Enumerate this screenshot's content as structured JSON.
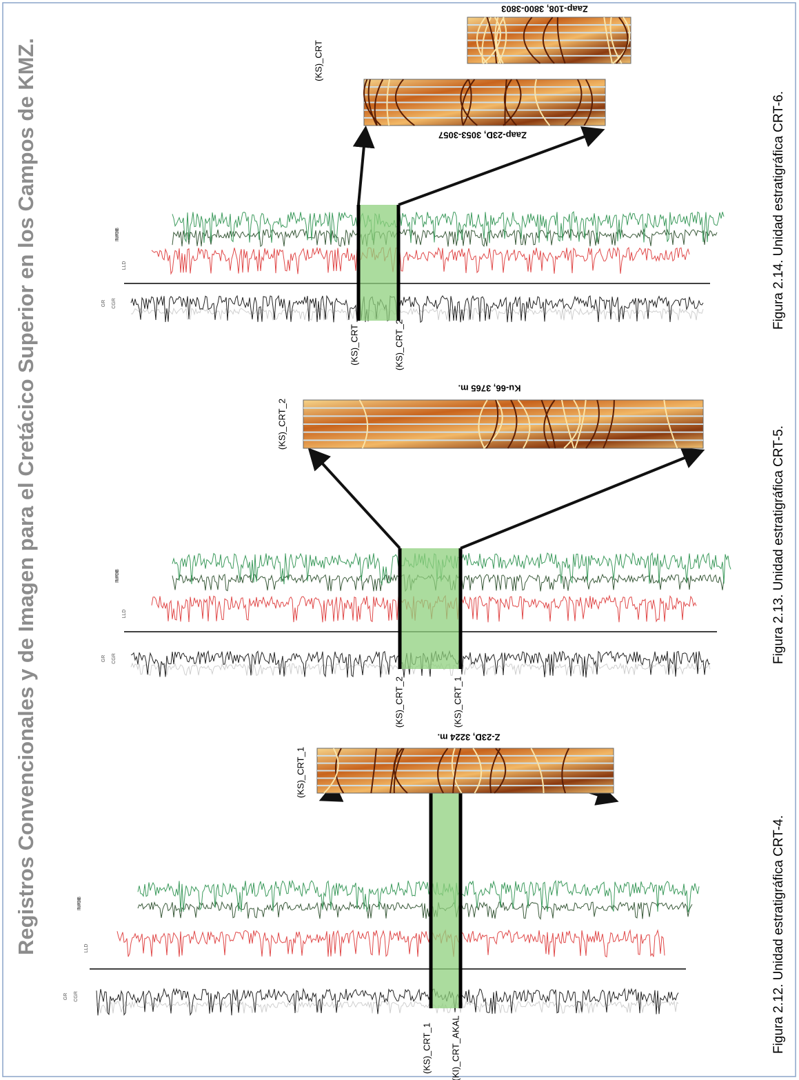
{
  "title": "Registros Convencionales y de Imagen para el Cretácico Superior en los Campos de KMZ.",
  "figures": [
    {
      "caption": "Figura 2.12. Unidad estratigráfica CRT-4.",
      "tracks": [
        "GR",
        "CGR",
        "LLD",
        "NPHI",
        "RHOB"
      ],
      "markers": [
        "(KS)_CRT_1",
        "(KI)_CRT_AKAL"
      ],
      "image_label": "(KS)_CRT_1",
      "core_labels": [
        "Z-23D,  3224 m."
      ]
    },
    {
      "caption": "Figura 2.13. Unidad estratigráfica CRT-5.",
      "tracks": [
        "GR",
        "CGR",
        "LLD",
        "NPHI",
        "RHOB"
      ],
      "markers": [
        "(KS)_CRT_2",
        "(KS)_CRT_1"
      ],
      "image_label": "(KS)_CRT_2",
      "core_labels": [
        "Ku-66, 3765 m."
      ]
    },
    {
      "caption": "Figura 2.14. Unidad estratigráfica CRT-6.",
      "tracks": [
        "GR",
        "CGR",
        "LLD",
        "NPHI",
        "RHOB"
      ],
      "markers": [
        "(KS)_CRT",
        "(KS)_CRT_2"
      ],
      "image_label": "(KS)_CRT",
      "core_labels": [
        "Zaap-23D, 3053-3057",
        "Zaap-108, 3800-3803"
      ]
    }
  ]
}
